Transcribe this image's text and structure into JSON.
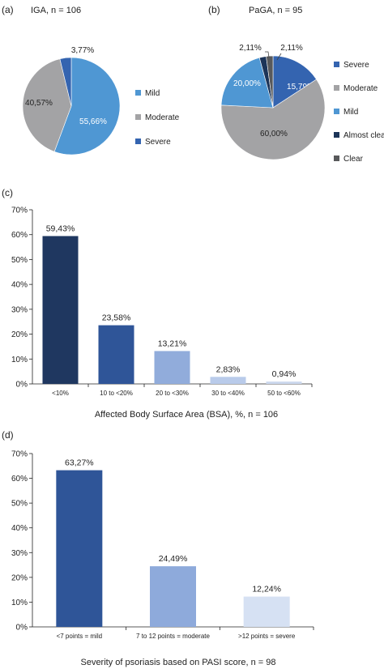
{
  "chart_data": [
    {
      "type": "pie",
      "panel": "(a)",
      "title": "IGA, n = 106",
      "slices": [
        {
          "label": "Mild",
          "value": 55.66,
          "value_label": "55,66%",
          "color": "#4f97d3"
        },
        {
          "label": "Moderate",
          "value": 40.57,
          "value_label": "40,57%",
          "color": "#a3a3a5"
        },
        {
          "label": "Severe",
          "value": 3.77,
          "value_label": "3,77%",
          "color": "#3464b0"
        }
      ],
      "legend": [
        "Mild",
        "Moderate",
        "Severe"
      ],
      "legend_position": "right"
    },
    {
      "type": "pie",
      "panel": "(b)",
      "title": "PaGA, n = 95",
      "slices": [
        {
          "label": "Severe",
          "value": 15.79,
          "value_label": "15,79%",
          "color": "#3464b0"
        },
        {
          "label": "Moderate",
          "value": 60.0,
          "value_label": "60,00%",
          "color": "#a3a3a5"
        },
        {
          "label": "Mild",
          "value": 20.0,
          "value_label": "20,00%",
          "color": "#4f97d3"
        },
        {
          "label": "Almost clear",
          "value": 2.11,
          "value_label": "2,11%",
          "color": "#1c3458"
        },
        {
          "label": "Clear",
          "value": 2.11,
          "value_label": "2,11%",
          "color": "#58595b"
        }
      ],
      "legend": [
        "Severe",
        "Moderate",
        "Mild",
        "Almost clear",
        "Clear"
      ],
      "legend_position": "right"
    },
    {
      "type": "bar",
      "panel": "(c)",
      "categories": [
        "<10%",
        "10 to <20%",
        "20 to <30%",
        "30 to <40%",
        "50 to <60%"
      ],
      "values": [
        59.43,
        23.58,
        13.21,
        2.83,
        0.94
      ],
      "value_labels": [
        "59,43%",
        "23,58%",
        "13,21%",
        "2,83%",
        "0,94%"
      ],
      "colors": [
        "#1f3760",
        "#2f5598",
        "#91acdb",
        "#b9cbea",
        "#ccd8ee"
      ],
      "xlabel": "Affected Body Surface Area (BSA), %, n = 106",
      "ylabel": "",
      "ylim": [
        0,
        70
      ],
      "yticks": [
        0,
        10,
        20,
        30,
        40,
        50,
        60,
        70
      ],
      "ytick_labels": [
        "0%",
        "10%",
        "20%",
        "30%",
        "40%",
        "50%",
        "60%",
        "70%"
      ],
      "grid": false
    },
    {
      "type": "bar",
      "panel": "(d)",
      "categories": [
        "<7 points = mild",
        "7 to 12 points = moderate",
        ">12 points = severe"
      ],
      "values": [
        63.27,
        24.49,
        12.24
      ],
      "value_labels": [
        "63,27%",
        "24,49%",
        "12,24%"
      ],
      "colors": [
        "#2f5598",
        "#8eaadb",
        "#d6e1f3"
      ],
      "xlabel": "Severity of psoriasis based on PASI score, n = 98",
      "ylabel": "",
      "ylim": [
        0,
        70
      ],
      "yticks": [
        0,
        10,
        20,
        30,
        40,
        50,
        60,
        70
      ],
      "ytick_labels": [
        "0%",
        "10%",
        "20%",
        "30%",
        "40%",
        "50%",
        "60%",
        "70%"
      ],
      "grid": false
    }
  ]
}
